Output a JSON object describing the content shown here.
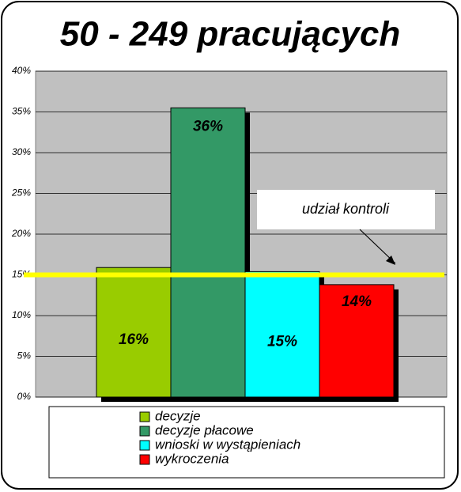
{
  "chart_data": {
    "type": "bar",
    "title": "50 - 249 pracujących",
    "categories": [
      null
    ],
    "series": [
      {
        "name": "decyzje",
        "color": "#99cc00",
        "values": [
          15.9
        ],
        "value_labels": [
          "16%"
        ]
      },
      {
        "name": "decyzje płacowe",
        "color": "#339966",
        "values": [
          35.5
        ],
        "value_labels": [
          "36%"
        ]
      },
      {
        "name": "wnioski w wystąpieniach",
        "color": "#00ffff",
        "values": [
          15.4
        ],
        "value_labels": [
          "15%"
        ]
      },
      {
        "name": "wykroczenia",
        "color": "#ff0000",
        "values": [
          13.8
        ],
        "value_labels": [
          "14%"
        ]
      }
    ],
    "reference_line": {
      "value": 15,
      "label": "udział kontroli",
      "color": "#ffff00"
    },
    "ylim": [
      0,
      40
    ],
    "yticks": [
      {
        "value": 0,
        "label": "0%"
      },
      {
        "value": 5,
        "label": "5%"
      },
      {
        "value": 10,
        "label": "10%"
      },
      {
        "value": 15,
        "label": "15%"
      },
      {
        "value": 20,
        "label": "20%"
      },
      {
        "value": 25,
        "label": "25%"
      },
      {
        "value": 30,
        "label": "30%"
      },
      {
        "value": 35,
        "label": "35%"
      },
      {
        "value": 40,
        "label": "40%"
      }
    ],
    "grid": true,
    "legend": "bottom",
    "plot_background": "#c0c0c0"
  }
}
